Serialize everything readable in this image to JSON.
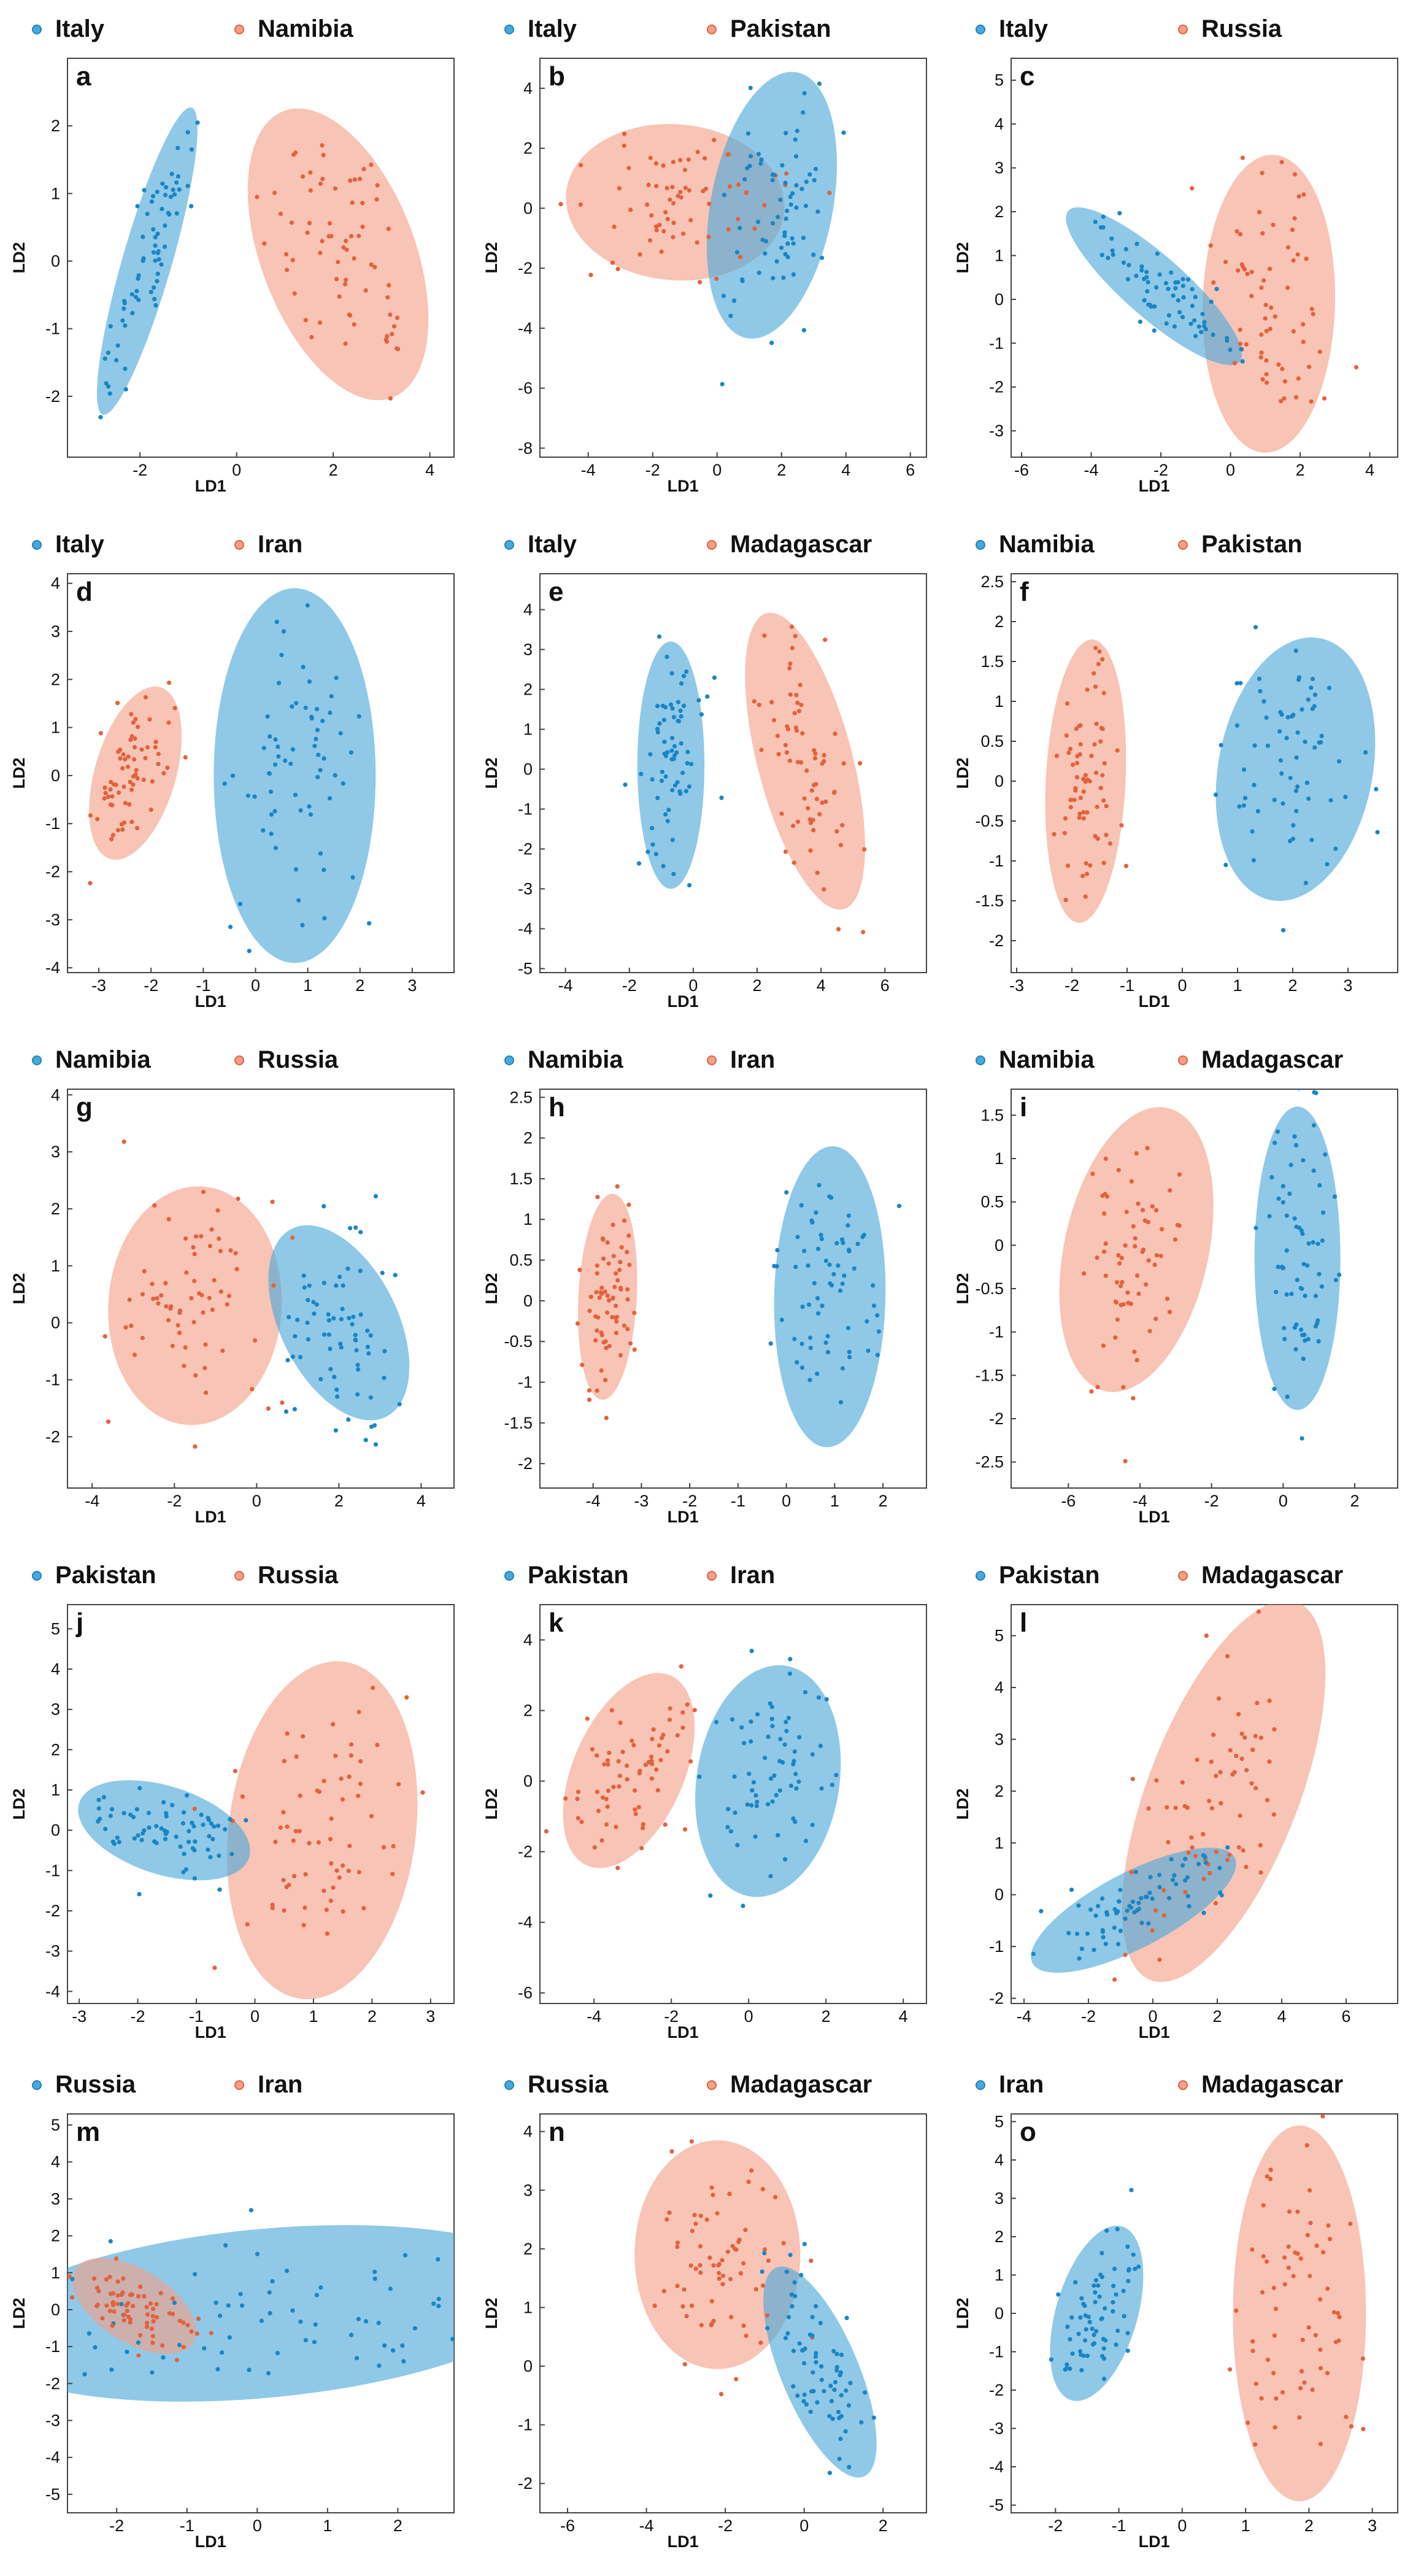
{
  "figure": {
    "description_free": true
  },
  "colors": {
    "blue": "#4aa8d8",
    "blue_point": "#1a85c4",
    "red": "#f4a088",
    "red_point": "#e2623d"
  },
  "chart_data": [
    {
      "id": "a",
      "type": "scatter",
      "series": [
        {
          "name": "Italy"
        },
        {
          "name": "Namibia"
        }
      ],
      "xlabel": "LD1",
      "ylabel": "LD2",
      "xlim": [
        -3.5,
        4.5
      ],
      "ylim": [
        -2.9,
        3.0
      ],
      "xticks": [
        -2,
        0,
        2,
        4
      ],
      "yticks": [
        -2,
        -1,
        0,
        1,
        2
      ],
      "ellipses": [
        {
          "series": 0,
          "cx": -1.85,
          "cy": 0.0,
          "rx": 2.45,
          "ry": 0.48,
          "angle": 68
        },
        {
          "series": 1,
          "cx": 2.1,
          "cy": 0.1,
          "rx": 2.4,
          "ry": 1.45,
          "angle": -62
        }
      ]
    },
    {
      "id": "b",
      "type": "scatter",
      "series": [
        {
          "name": "Italy"
        },
        {
          "name": "Pakistan"
        }
      ],
      "xlabel": "LD1",
      "ylabel": "LD2",
      "xlim": [
        -5.5,
        6.5
      ],
      "ylim": [
        -8.3,
        5.0
      ],
      "xticks": [
        -4,
        -2,
        0,
        2,
        4,
        6
      ],
      "yticks": [
        -8,
        -6,
        -4,
        -2,
        0,
        2,
        4
      ],
      "ellipses": [
        {
          "series": 1,
          "cx": -1.3,
          "cy": 0.2,
          "rx": 3.4,
          "ry": 2.6,
          "angle": -5
        },
        {
          "series": 0,
          "cx": 1.7,
          "cy": 0.1,
          "rx": 4.5,
          "ry": 1.9,
          "angle": 80
        }
      ]
    },
    {
      "id": "c",
      "type": "scatter",
      "series": [
        {
          "name": "Italy"
        },
        {
          "name": "Russia"
        }
      ],
      "xlabel": "LD1",
      "ylabel": "LD2",
      "xlim": [
        -6.3,
        4.8
      ],
      "ylim": [
        -3.6,
        5.5
      ],
      "xticks": [
        -6,
        -4,
        -2,
        0,
        2,
        4
      ],
      "yticks": [
        -3,
        -2,
        -1,
        0,
        1,
        2,
        3,
        4,
        5
      ],
      "ellipses": [
        {
          "series": 1,
          "cx": 1.1,
          "cy": -0.1,
          "rx": 3.4,
          "ry": 1.9,
          "angle": 88
        },
        {
          "series": 0,
          "cx": -2.2,
          "cy": 0.3,
          "rx": 3.0,
          "ry": 0.75,
          "angle": -35
        }
      ]
    },
    {
      "id": "d",
      "type": "scatter",
      "series": [
        {
          "name": "Italy"
        },
        {
          "name": "Iran"
        }
      ],
      "xlabel": "LD1",
      "ylabel": "LD2",
      "xlim": [
        -3.6,
        3.8
      ],
      "ylim": [
        -4.1,
        4.2
      ],
      "xticks": [
        -3,
        -2,
        -1,
        0,
        1,
        2,
        3
      ],
      "yticks": [
        -4,
        -3,
        -2,
        -1,
        0,
        1,
        2,
        3,
        4
      ],
      "ellipses": [
        {
          "series": 1,
          "cx": -2.3,
          "cy": 0.05,
          "rx": 1.85,
          "ry": 0.78,
          "angle": 75
        },
        {
          "series": 0,
          "cx": 0.75,
          "cy": 0.0,
          "rx": 3.9,
          "ry": 1.55,
          "angle": 90
        }
      ]
    },
    {
      "id": "e",
      "type": "scatter",
      "series": [
        {
          "name": "Italy"
        },
        {
          "name": "Madagascar"
        }
      ],
      "xlabel": "LD1",
      "ylabel": "LD2",
      "xlim": [
        -4.8,
        7.3
      ],
      "ylim": [
        -5.1,
        4.9
      ],
      "xticks": [
        -4,
        -2,
        0,
        2,
        4,
        6
      ],
      "yticks": [
        -5,
        -4,
        -3,
        -2,
        -1,
        0,
        1,
        2,
        3,
        4
      ],
      "ellipses": [
        {
          "series": 0,
          "cx": -0.7,
          "cy": 0.1,
          "rx": 3.1,
          "ry": 1.05,
          "angle": 90
        },
        {
          "series": 1,
          "cx": 3.5,
          "cy": 0.2,
          "rx": 3.9,
          "ry": 1.45,
          "angle": -72
        }
      ]
    },
    {
      "id": "f",
      "type": "scatter",
      "series": [
        {
          "name": "Namibia"
        },
        {
          "name": "Pakistan"
        }
      ],
      "xlabel": "LD1",
      "ylabel": "LD2",
      "xlim": [
        -3.1,
        3.9
      ],
      "ylim": [
        -2.4,
        2.6
      ],
      "xticks": [
        -3,
        -2,
        -1,
        0,
        1,
        2,
        3
      ],
      "yticks": [
        -2,
        -1.5,
        -1,
        -0.5,
        0,
        0.5,
        1,
        1.5,
        2,
        2.5
      ],
      "ellipses": [
        {
          "series": 1,
          "cx": -1.75,
          "cy": 0.0,
          "rx": 1.78,
          "ry": 0.72,
          "angle": 86
        },
        {
          "series": 0,
          "cx": 2.05,
          "cy": 0.15,
          "rx": 1.7,
          "ry": 1.35,
          "angle": 75
        }
      ]
    },
    {
      "id": "g",
      "type": "scatter",
      "series": [
        {
          "name": "Namibia"
        },
        {
          "name": "Russia"
        }
      ],
      "xlabel": "LD1",
      "ylabel": "LD2",
      "xlim": [
        -4.6,
        4.8
      ],
      "ylim": [
        -2.9,
        4.1
      ],
      "xticks": [
        -4,
        -2,
        0,
        2,
        4
      ],
      "yticks": [
        -2,
        -1,
        0,
        1,
        2,
        3,
        4
      ],
      "ellipses": [
        {
          "series": 1,
          "cx": -1.5,
          "cy": 0.3,
          "rx": 2.1,
          "ry": 2.1,
          "angle": 85
        },
        {
          "series": 0,
          "cx": 2.0,
          "cy": 0.0,
          "rx": 1.35,
          "ry": 1.9,
          "angle": 20
        }
      ]
    },
    {
      "id": "h",
      "type": "scatter",
      "series": [
        {
          "name": "Namibia"
        },
        {
          "name": "Iran"
        }
      ],
      "xlabel": "LD1",
      "ylabel": "LD2",
      "xlim": [
        -5.1,
        2.9
      ],
      "ylim": [
        -2.3,
        2.6
      ],
      "xticks": [
        -4,
        -3,
        -2,
        -1,
        0,
        1,
        2
      ],
      "yticks": [
        -2,
        -1.5,
        -1,
        -0.5,
        0,
        0.5,
        1,
        1.5,
        2,
        2.5
      ],
      "ellipses": [
        {
          "series": 1,
          "cx": -3.7,
          "cy": 0.05,
          "rx": 1.27,
          "ry": 0.6,
          "angle": 85
        },
        {
          "series": 0,
          "cx": 0.9,
          "cy": 0.05,
          "rx": 1.85,
          "ry": 1.15,
          "angle": 88
        }
      ]
    },
    {
      "id": "i",
      "type": "scatter",
      "series": [
        {
          "name": "Namibia"
        },
        {
          "name": "Madagascar"
        }
      ],
      "xlabel": "LD1",
      "ylabel": "LD2",
      "xlim": [
        -7.6,
        3.2
      ],
      "ylim": [
        -2.8,
        1.8
      ],
      "xticks": [
        -6,
        -4,
        -2,
        0,
        2
      ],
      "yticks": [
        -2.5,
        -2,
        -1.5,
        -1,
        -0.5,
        0,
        0.5,
        1,
        1.5
      ],
      "ellipses": [
        {
          "series": 1,
          "cx": -4.1,
          "cy": -0.05,
          "rx": 1.85,
          "ry": 1.4,
          "angle": 62
        },
        {
          "series": 0,
          "cx": 0.4,
          "cy": -0.15,
          "rx": 1.75,
          "ry": 1.2,
          "angle": 90
        }
      ]
    },
    {
      "id": "j",
      "type": "scatter",
      "series": [
        {
          "name": "Pakistan"
        },
        {
          "name": "Russia"
        }
      ],
      "xlabel": "LD1",
      "ylabel": "LD2",
      "xlim": [
        -3.2,
        3.4
      ],
      "ylim": [
        -4.3,
        5.6
      ],
      "xticks": [
        -3,
        -2,
        -1,
        0,
        1,
        2,
        3
      ],
      "yticks": [
        -4,
        -3,
        -2,
        -1,
        0,
        1,
        2,
        3,
        4,
        5
      ],
      "ellipses": [
        {
          "series": 1,
          "cx": 1.15,
          "cy": 0.0,
          "rx": 4.2,
          "ry": 1.6,
          "angle": 85
        },
        {
          "series": 0,
          "cx": -1.55,
          "cy": 0.0,
          "rx": 1.6,
          "ry": 1.0,
          "angle": -25
        }
      ]
    },
    {
      "id": "k",
      "type": "scatter",
      "series": [
        {
          "name": "Pakistan"
        },
        {
          "name": "Iran"
        }
      ],
      "xlabel": "LD1",
      "ylabel": "LD2",
      "xlim": [
        -5.4,
        4.6
      ],
      "ylim": [
        -6.3,
        5.0
      ],
      "xticks": [
        -4,
        -2,
        0,
        2,
        4
      ],
      "yticks": [
        -6,
        -4,
        -2,
        0,
        2,
        4
      ],
      "ellipses": [
        {
          "series": 1,
          "cx": -3.1,
          "cy": 0.3,
          "rx": 2.9,
          "ry": 1.45,
          "angle": 68
        },
        {
          "series": 0,
          "cx": 0.5,
          "cy": 0.0,
          "rx": 3.3,
          "ry": 1.85,
          "angle": 82
        }
      ]
    },
    {
      "id": "l",
      "type": "scatter",
      "series": [
        {
          "name": "Pakistan"
        },
        {
          "name": "Madagascar"
        }
      ],
      "xlabel": "LD1",
      "ylabel": "LD2",
      "xlim": [
        -4.4,
        7.6
      ],
      "ylim": [
        -2.1,
        5.6
      ],
      "xticks": [
        -4,
        -2,
        0,
        2,
        4,
        6
      ],
      "yticks": [
        -2,
        -1,
        0,
        1,
        2,
        3,
        4,
        5
      ],
      "ellipses": [
        {
          "series": 1,
          "cx": 2.2,
          "cy": 2.0,
          "rx": 4.3,
          "ry": 1.95,
          "angle": 58
        },
        {
          "series": 0,
          "cx": -0.6,
          "cy": -0.3,
          "rx": 3.3,
          "ry": 0.75,
          "angle": 18
        }
      ]
    },
    {
      "id": "m",
      "type": "scatter",
      "series": [
        {
          "name": "Russia"
        },
        {
          "name": "Iran"
        }
      ],
      "xlabel": "LD1",
      "ylabel": "LD2",
      "xlim": [
        -2.7,
        2.8
      ],
      "ylim": [
        -5.5,
        5.3
      ],
      "xticks": [
        -2,
        -1,
        0,
        1,
        2
      ],
      "yticks": [
        -5,
        -4,
        -3,
        -2,
        -1,
        0,
        1,
        2,
        3,
        4,
        5
      ],
      "ellipses": [
        {
          "series": 0,
          "cx": 0.1,
          "cy": -0.1,
          "rx": 4.2,
          "ry": 2.2,
          "angle": 10
        },
        {
          "series": 1,
          "cx": -1.75,
          "cy": 0.1,
          "rx": 1.3,
          "ry": 0.62,
          "angle": -50
        }
      ]
    },
    {
      "id": "n",
      "type": "scatter",
      "series": [
        {
          "name": "Russia"
        },
        {
          "name": "Madagascar"
        }
      ],
      "xlabel": "LD1",
      "ylabel": "LD2",
      "xlim": [
        -6.7,
        3.1
      ],
      "ylim": [
        -2.5,
        4.3
      ],
      "xticks": [
        -6,
        -4,
        -2,
        0,
        2
      ],
      "yticks": [
        -2,
        -1,
        0,
        1,
        2,
        3,
        4
      ],
      "ellipses": [
        {
          "series": 1,
          "cx": -2.2,
          "cy": 1.9,
          "rx": 2.1,
          "ry": 1.95,
          "angle": 0
        },
        {
          "series": 0,
          "cx": 0.4,
          "cy": -0.1,
          "rx": 2.1,
          "ry": 0.85,
          "angle": -58
        }
      ]
    },
    {
      "id": "o",
      "type": "scatter",
      "series": [
        {
          "name": "Iran"
        },
        {
          "name": "Madagascar"
        }
      ],
      "xlabel": "LD1",
      "ylabel": "LD2",
      "xlim": [
        -2.7,
        3.4
      ],
      "ylim": [
        -5.2,
        5.2
      ],
      "xticks": [
        -2,
        -1,
        0,
        1,
        2,
        3
      ],
      "yticks": [
        -5,
        -4,
        -3,
        -2,
        -1,
        0,
        1,
        2,
        3,
        4,
        5
      ],
      "ellipses": [
        {
          "series": 0,
          "cx": -1.35,
          "cy": 0.0,
          "rx": 2.3,
          "ry": 0.65,
          "angle": 80
        },
        {
          "series": 1,
          "cx": 1.85,
          "cy": 0.0,
          "rx": 4.9,
          "ry": 1.05,
          "angle": 90
        }
      ]
    }
  ]
}
